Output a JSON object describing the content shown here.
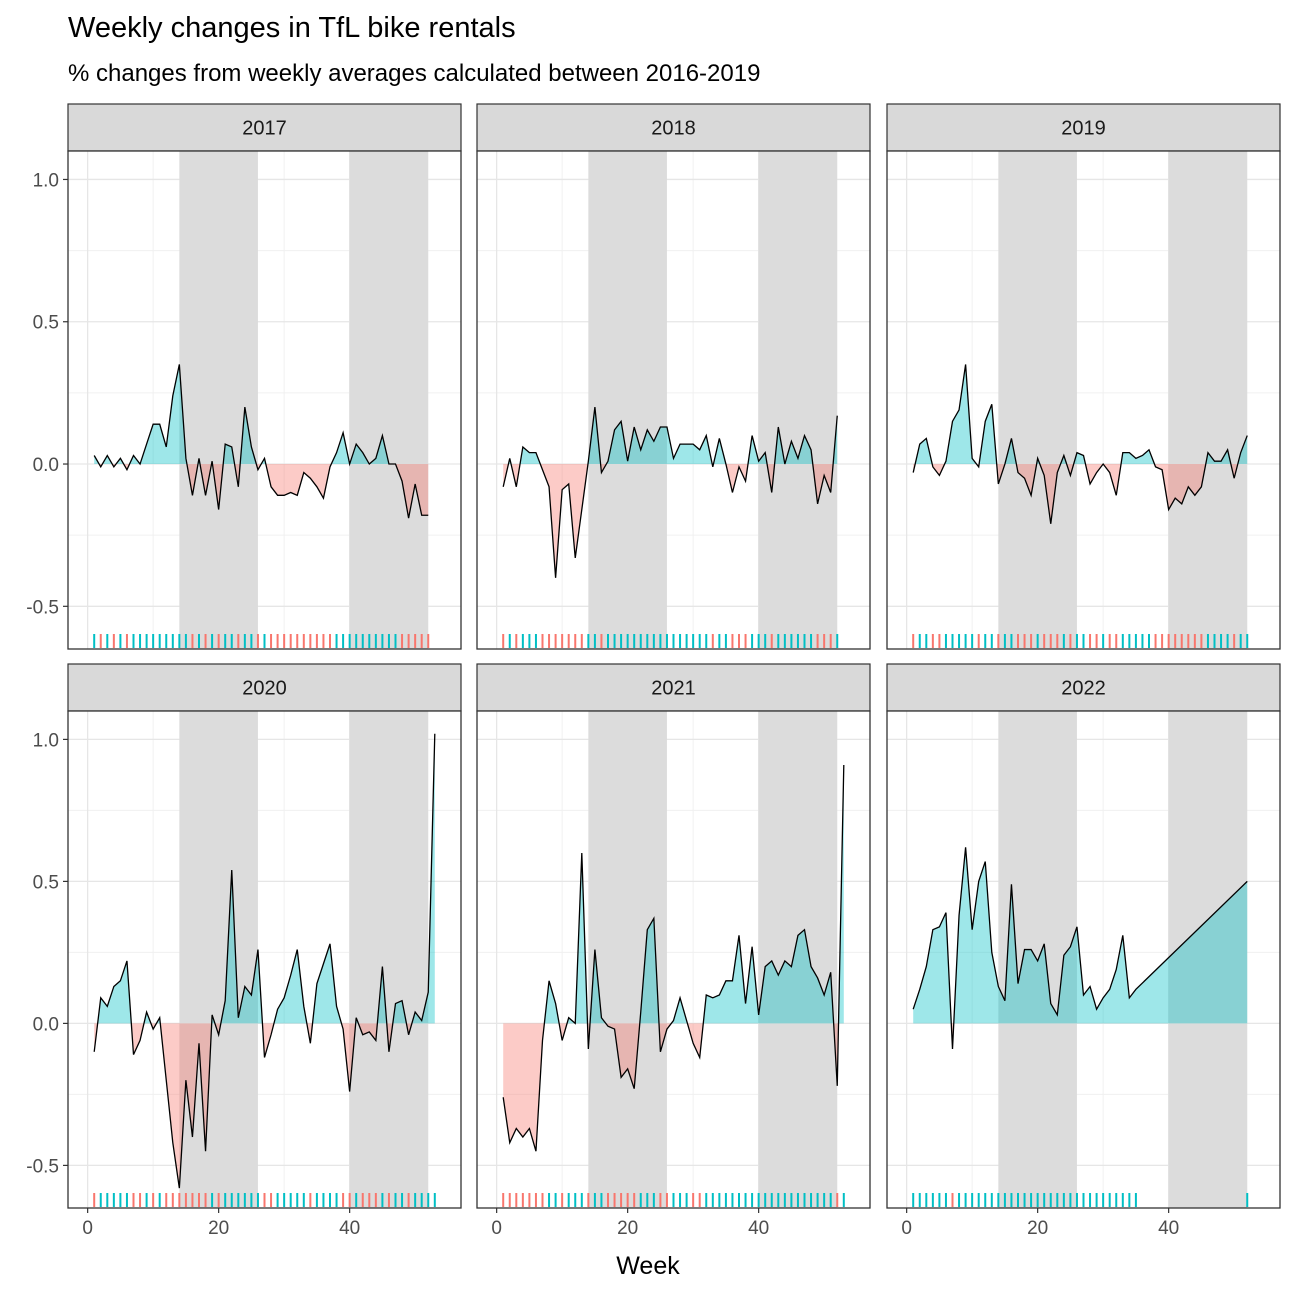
{
  "chart_data": {
    "type": "area",
    "title": "Weekly changes in TfL bike rentals",
    "subtitle": "% changes from weekly averages calculated between 2016-2019",
    "xlabel": "Week",
    "ylabel": "",
    "xlim": [
      -3,
      57
    ],
    "ylim": [
      -0.65,
      1.1
    ],
    "x_ticks": [
      0,
      20,
      40
    ],
    "y_ticks": [
      -0.5,
      0.0,
      0.5,
      1.0
    ],
    "y_tick_labels": [
      "-0.5",
      "0.0",
      "0.5",
      "1.0"
    ],
    "grid": true,
    "shaded_week_ranges": [
      [
        14,
        26
      ],
      [
        40,
        52
      ]
    ],
    "colors": {
      "positive": "#00BFC4",
      "negative": "#F8766D",
      "shade": "#dcdcdc",
      "strip": "#d9d9d9"
    },
    "panels": [
      {
        "label": "2017",
        "x": [
          1,
          2,
          3,
          4,
          5,
          6,
          7,
          8,
          9,
          10,
          11,
          12,
          13,
          14,
          15,
          16,
          17,
          18,
          19,
          20,
          21,
          22,
          23,
          24,
          25,
          26,
          27,
          28,
          29,
          30,
          31,
          32,
          33,
          34,
          35,
          36,
          37,
          38,
          39,
          40,
          41,
          42,
          43,
          44,
          45,
          46,
          47,
          48,
          49,
          50,
          51,
          52
        ],
        "values": [
          0.03,
          -0.01,
          0.03,
          -0.01,
          0.02,
          -0.02,
          0.03,
          0,
          0.07,
          0.14,
          0.14,
          0.06,
          0.24,
          0.35,
          0.02,
          -0.11,
          0.02,
          -0.11,
          0.01,
          -0.16,
          0.07,
          0.06,
          -0.08,
          0.2,
          0.06,
          -0.02,
          0.02,
          -0.08,
          -0.11,
          -0.11,
          -0.1,
          -0.11,
          -0.03,
          -0.05,
          -0.08,
          -0.12,
          -0.01,
          0.04,
          0.11,
          0,
          0.07,
          0.04,
          0,
          0.02,
          0.1,
          0,
          0,
          -0.06,
          -0.19,
          -0.07,
          -0.18,
          -0.18
        ]
      },
      {
        "label": "2018",
        "x": [
          1,
          2,
          3,
          4,
          5,
          6,
          7,
          8,
          9,
          10,
          11,
          12,
          13,
          14,
          15,
          16,
          17,
          18,
          19,
          20,
          21,
          22,
          23,
          24,
          25,
          26,
          27,
          28,
          29,
          30,
          31,
          32,
          33,
          34,
          35,
          36,
          37,
          38,
          39,
          40,
          41,
          42,
          43,
          44,
          45,
          46,
          47,
          48,
          49,
          50,
          51,
          52
        ],
        "values": [
          -0.08,
          0.02,
          -0.08,
          0.06,
          0.04,
          0.04,
          -0.02,
          -0.08,
          -0.4,
          -0.09,
          -0.07,
          -0.33,
          -0.16,
          0.01,
          0.2,
          -0.03,
          0.01,
          0.12,
          0.15,
          0.01,
          0.13,
          0.05,
          0.12,
          0.08,
          0.13,
          0.13,
          0.02,
          0.07,
          0.07,
          0.07,
          0.05,
          0.1,
          -0.01,
          0.09,
          0,
          -0.1,
          -0.01,
          -0.06,
          0.1,
          0.01,
          0.04,
          -0.1,
          0.13,
          0,
          0.08,
          0.02,
          0.1,
          0.05,
          -0.14,
          -0.04,
          -0.1,
          0.17
        ]
      },
      {
        "label": "2019",
        "x": [
          1,
          2,
          3,
          4,
          5,
          6,
          7,
          8,
          9,
          10,
          11,
          12,
          13,
          14,
          15,
          16,
          17,
          18,
          19,
          20,
          21,
          22,
          23,
          24,
          25,
          26,
          27,
          28,
          29,
          30,
          31,
          32,
          33,
          34,
          35,
          36,
          37,
          38,
          39,
          40,
          41,
          42,
          43,
          44,
          45,
          46,
          47,
          48,
          49,
          50,
          51,
          52
        ],
        "values": [
          -0.03,
          0.07,
          0.09,
          -0.01,
          -0.04,
          0.01,
          0.15,
          0.19,
          0.35,
          0.02,
          -0.01,
          0.15,
          0.21,
          -0.07,
          0,
          0.09,
          -0.03,
          -0.05,
          -0.11,
          0.02,
          -0.04,
          -0.21,
          -0.03,
          0.03,
          -0.04,
          0.04,
          0.03,
          -0.07,
          -0.03,
          0,
          -0.03,
          -0.11,
          0.04,
          0.04,
          0.02,
          0.03,
          0.05,
          -0.01,
          -0.02,
          -0.16,
          -0.12,
          -0.14,
          -0.08,
          -0.11,
          -0.08,
          0.04,
          0.01,
          0.01,
          0.05,
          -0.05,
          0.04,
          0.1
        ]
      },
      {
        "label": "2020",
        "x": [
          1,
          2,
          3,
          4,
          5,
          6,
          7,
          8,
          9,
          10,
          11,
          12,
          13,
          14,
          15,
          16,
          17,
          18,
          19,
          20,
          21,
          22,
          23,
          24,
          25,
          26,
          27,
          28,
          29,
          30,
          31,
          32,
          33,
          34,
          35,
          36,
          37,
          38,
          39,
          40,
          41,
          42,
          43,
          44,
          45,
          46,
          47,
          48,
          49,
          50,
          51,
          52,
          53
        ],
        "values": [
          -0.1,
          0.09,
          0.06,
          0.13,
          0.15,
          0.22,
          -0.11,
          -0.06,
          0.04,
          -0.02,
          0.02,
          -0.2,
          -0.42,
          -0.58,
          -0.2,
          -0.4,
          -0.07,
          -0.45,
          0.03,
          -0.04,
          0.08,
          0.54,
          0.02,
          0.13,
          0.1,
          0.26,
          -0.12,
          -0.04,
          0.05,
          0.09,
          0.17,
          0.26,
          0.06,
          -0.07,
          0.14,
          0.21,
          0.28,
          0.06,
          -0.02,
          -0.24,
          0.02,
          -0.04,
          -0.03,
          -0.06,
          0.2,
          -0.1,
          0.07,
          0.08,
          -0.04,
          0.04,
          0.01,
          0.11,
          1.02
        ]
      },
      {
        "label": "2021",
        "x": [
          1,
          2,
          3,
          4,
          5,
          6,
          7,
          8,
          9,
          10,
          11,
          12,
          13,
          14,
          15,
          16,
          17,
          18,
          19,
          20,
          21,
          22,
          23,
          24,
          25,
          26,
          27,
          28,
          29,
          30,
          31,
          32,
          33,
          34,
          35,
          36,
          37,
          38,
          39,
          40,
          41,
          42,
          43,
          44,
          45,
          46,
          47,
          48,
          49,
          50,
          51,
          52,
          53
        ],
        "values": [
          -0.26,
          -0.42,
          -0.37,
          -0.4,
          -0.37,
          -0.45,
          -0.06,
          0.15,
          0.07,
          -0.06,
          0.02,
          0,
          0.6,
          -0.09,
          0.26,
          0.02,
          -0.01,
          -0.02,
          -0.19,
          -0.16,
          -0.23,
          0.04,
          0.33,
          0.37,
          -0.1,
          -0.02,
          0.01,
          0.09,
          0.01,
          -0.07,
          -0.12,
          0.1,
          0.09,
          0.1,
          0.15,
          0.15,
          0.31,
          0.07,
          0.27,
          0.03,
          0.2,
          0.22,
          0.17,
          0.22,
          0.2,
          0.31,
          0.33,
          0.2,
          0.16,
          0.1,
          0.18,
          -0.22,
          0.91
        ]
      },
      {
        "label": "2022",
        "x": [
          1,
          2,
          3,
          4,
          5,
          6,
          7,
          8,
          9,
          10,
          11,
          12,
          13,
          14,
          15,
          16,
          17,
          18,
          19,
          20,
          21,
          22,
          23,
          24,
          25,
          26,
          27,
          28,
          29,
          30,
          31,
          32,
          33,
          34,
          35,
          52
        ],
        "values": [
          0.05,
          0.12,
          0.2,
          0.33,
          0.34,
          0.39,
          -0.09,
          0.38,
          0.62,
          0.33,
          0.5,
          0.57,
          0.25,
          0.13,
          0.08,
          0.49,
          0.14,
          0.26,
          0.26,
          0.22,
          0.28,
          0.07,
          0.03,
          0.24,
          0.27,
          0.34,
          0.1,
          0.13,
          0.05,
          0.09,
          0.12,
          0.19,
          0.31,
          0.09,
          0.12,
          0.5
        ]
      }
    ]
  }
}
